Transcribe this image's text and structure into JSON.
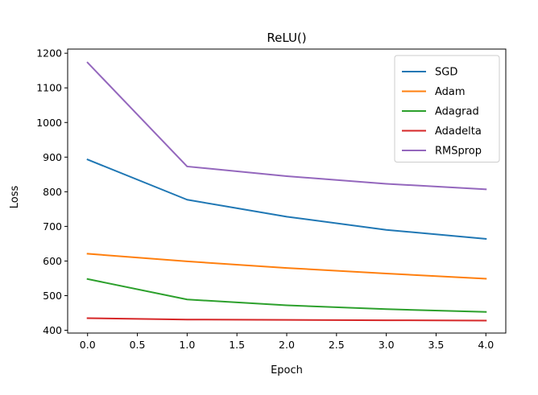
{
  "chart_data": {
    "type": "line",
    "title": "ReLU()",
    "xlabel": "Epoch",
    "ylabel": "Loss",
    "x": [
      0,
      1,
      2,
      3,
      4
    ],
    "xlim": [
      -0.2,
      4.2
    ],
    "ylim": [
      392,
      1212
    ],
    "xticks": [
      0.0,
      0.5,
      1.0,
      1.5,
      2.0,
      2.5,
      3.0,
      3.5,
      4.0
    ],
    "xtick_labels": [
      "0.0",
      "0.5",
      "1.0",
      "1.5",
      "2.0",
      "2.5",
      "3.0",
      "3.5",
      "4.0"
    ],
    "yticks": [
      400,
      500,
      600,
      700,
      800,
      900,
      1000,
      1100,
      1200
    ],
    "ytick_labels": [
      "400",
      "500",
      "600",
      "700",
      "800",
      "900",
      "1000",
      "1100",
      "1200"
    ],
    "grid": false,
    "legend_position": "top-right",
    "series": [
      {
        "name": "SGD",
        "color": "#1f77b4",
        "values": [
          893,
          777,
          728,
          690,
          664
        ]
      },
      {
        "name": "Adam",
        "color": "#ff7f0e",
        "values": [
          621,
          599,
          580,
          564,
          549
        ]
      },
      {
        "name": "Adagrad",
        "color": "#2ca02c",
        "values": [
          548,
          489,
          472,
          461,
          453
        ]
      },
      {
        "name": "Adadelta",
        "color": "#d62728",
        "values": [
          435,
          431,
          430,
          429,
          428
        ]
      },
      {
        "name": "RMSprop",
        "color": "#9467bd",
        "values": [
          1173,
          873,
          845,
          823,
          807
        ]
      }
    ]
  }
}
